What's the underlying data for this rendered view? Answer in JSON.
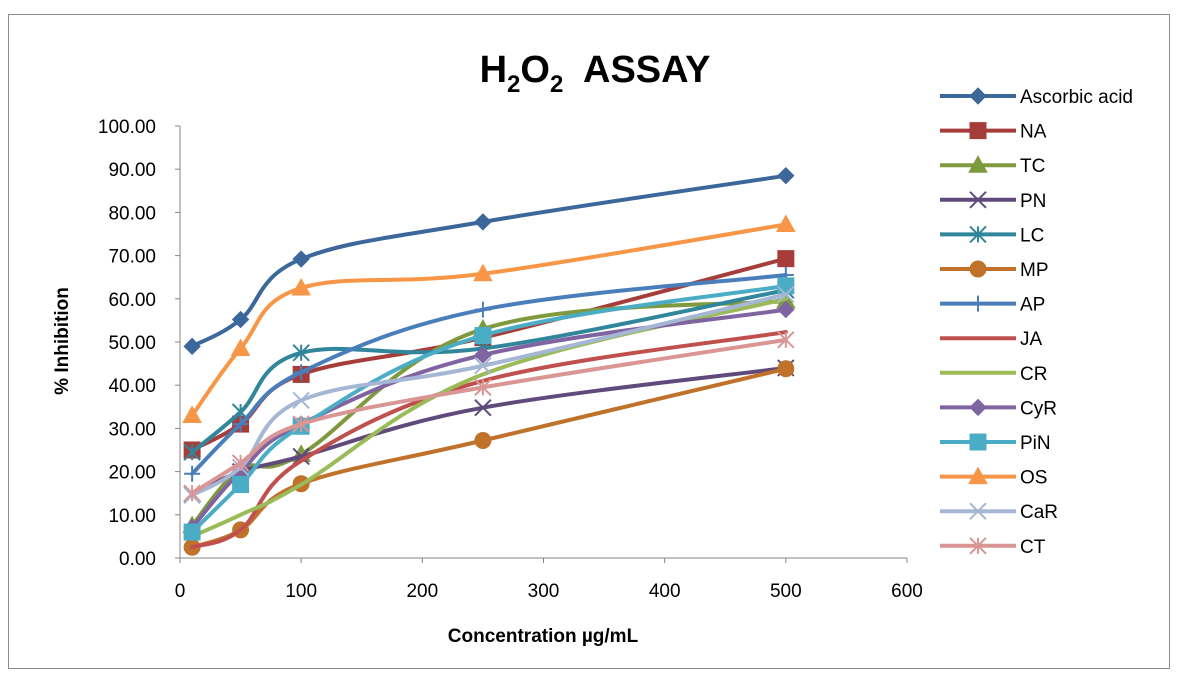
{
  "chart_data": {
    "type": "line",
    "title_main": "H",
    "title_sub1": "2",
    "title_mid": "O",
    "title_sub2": "2",
    "title_rest": "  ASSAY",
    "xlabel": "Concentration µg/mL",
    "ylabel": "% Inhibition",
    "xlim": [
      0,
      600
    ],
    "ylim": [
      0,
      100
    ],
    "x_ticks": [
      "0",
      "100",
      "200",
      "300",
      "400",
      "500",
      "600"
    ],
    "y_ticks": [
      "0.00",
      "10.00",
      "20.00",
      "30.00",
      "40.00",
      "50.00",
      "60.00",
      "70.00",
      "80.00",
      "90.00",
      "100.00"
    ],
    "grid": false,
    "legend_position": "right",
    "x": [
      10,
      50,
      100,
      250,
      500
    ],
    "series": [
      {
        "name": "Ascorbic acid",
        "color": "#3c679b",
        "marker": "diamond",
        "values": [
          49.0,
          55.2,
          69.2,
          77.8,
          88.5
        ]
      },
      {
        "name": "NA",
        "color": "#a63d3a",
        "marker": "square",
        "values": [
          25.0,
          31.0,
          42.5,
          51.0,
          69.3
        ]
      },
      {
        "name": "TC",
        "color": "#7f9a3e",
        "marker": "triangle",
        "values": [
          7.5,
          20.5,
          24.0,
          53.0,
          59.5
        ]
      },
      {
        "name": "PN",
        "color": "#604a7b",
        "marker": "x",
        "values": [
          14.8,
          20.0,
          23.5,
          34.8,
          44.0
        ]
      },
      {
        "name": "LC",
        "color": "#31869b",
        "marker": "asterisk",
        "values": [
          24.5,
          33.8,
          47.5,
          48.5,
          62.0
        ]
      },
      {
        "name": "MP",
        "color": "#c0712a",
        "marker": "circle",
        "values": [
          2.5,
          6.5,
          17.2,
          27.2,
          43.8
        ]
      },
      {
        "name": "AP",
        "color": "#4a7ebb",
        "marker": "plus",
        "values": [
          19.5,
          31.0,
          43.0,
          57.5,
          65.5
        ]
      },
      {
        "name": "JA",
        "color": "#c0504d",
        "marker": "none",
        "values": [
          2.5,
          6.5,
          22.5,
          41.0,
          52.3
        ]
      },
      {
        "name": "CR",
        "color": "#9bbb59",
        "marker": "none",
        "values": [
          5.0,
          10.0,
          17.0,
          42.5,
          60.0
        ]
      },
      {
        "name": "CyR",
        "color": "#8064a2",
        "marker": "diamond",
        "values": [
          7.0,
          20.0,
          31.0,
          47.0,
          57.5
        ]
      },
      {
        "name": "PiN",
        "color": "#4bacc6",
        "marker": "square",
        "values": [
          6.0,
          17.0,
          30.5,
          51.5,
          63.0
        ]
      },
      {
        "name": "OS",
        "color": "#f79646",
        "marker": "triangle",
        "values": [
          33.0,
          48.5,
          62.5,
          65.8,
          77.2
        ]
      },
      {
        "name": "CaR",
        "color": "#a5b7d4",
        "marker": "x",
        "values": [
          14.5,
          21.0,
          36.5,
          44.5,
          61.0
        ]
      },
      {
        "name": "CT",
        "color": "#d99694",
        "marker": "asterisk",
        "values": [
          15.0,
          22.0,
          31.0,
          39.5,
          50.5
        ]
      }
    ]
  }
}
